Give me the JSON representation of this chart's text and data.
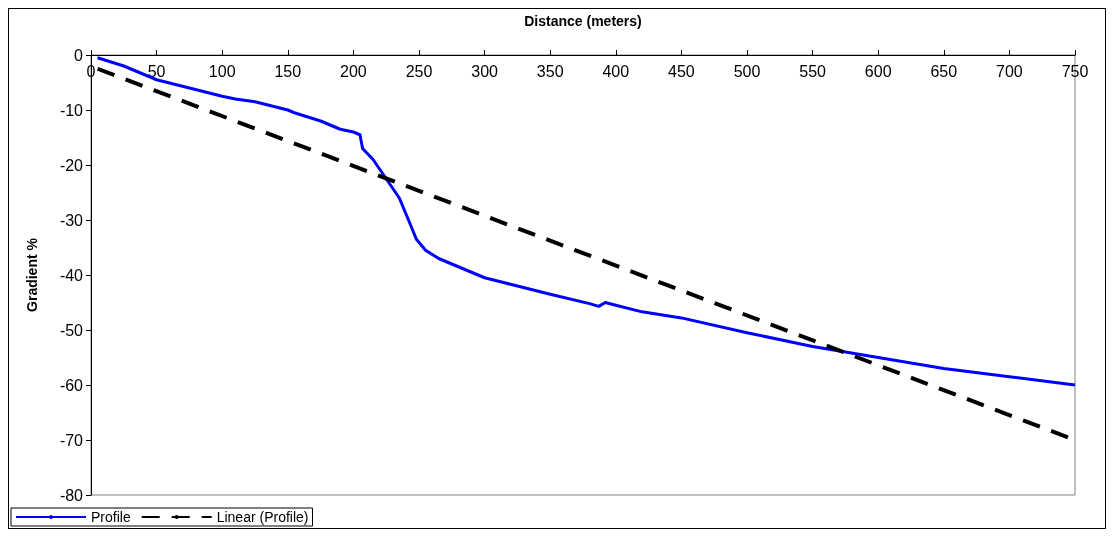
{
  "chart_data": {
    "type": "line",
    "xlabel": "Distance (meters)",
    "ylabel": "Gradient %",
    "xlim": [
      0,
      750
    ],
    "xticks": [
      0,
      50,
      100,
      150,
      200,
      250,
      300,
      350,
      400,
      450,
      500,
      550,
      600,
      650,
      700,
      750
    ],
    "ylim": [
      -80,
      0
    ],
    "yticks": [
      -80,
      -70,
      -60,
      -50,
      -40,
      -30,
      -20,
      -10,
      0
    ],
    "grid": false,
    "legend": "bottom left",
    "marker": "none",
    "series": [
      {
        "name": "Profile",
        "color": "#0000ff",
        "line_style": "solid",
        "x": [
          5,
          25,
          50,
          75,
          100,
          110,
          125,
          150,
          155,
          175,
          190,
          200,
          205,
          207,
          215,
          225,
          235,
          242,
          248,
          255,
          265,
          300,
          325,
          350,
          380,
          387,
          392,
          400,
          420,
          450,
          500,
          550,
          600,
          650,
          700,
          750
        ],
        "values": [
          -0.5,
          -2,
          -4.5,
          -6,
          -7.5,
          -8,
          -8.5,
          -10,
          -10.5,
          -12,
          -13.5,
          -14,
          -14.5,
          -17,
          -19,
          -22.5,
          -26,
          -30,
          -33.5,
          -35.5,
          -37,
          -40.5,
          -42,
          -43.5,
          -45.2,
          -45.7,
          -45,
          -45.5,
          -46.7,
          -47.8,
          -50.5,
          -53,
          -55,
          -57,
          -58.5,
          -60
        ]
      },
      {
        "name": "Linear (Profile)",
        "color": "#000000",
        "line_style": "dashed",
        "x": [
          5,
          750
        ],
        "values": [
          -2.5,
          -70
        ]
      }
    ]
  }
}
